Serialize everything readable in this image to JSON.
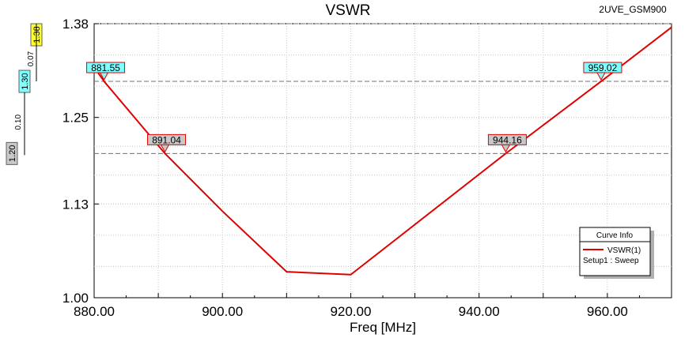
{
  "chart_data": {
    "type": "line",
    "title": "VSWR",
    "project": "2UVE_GSM900",
    "xlabel": "Freq [MHz]",
    "ylabel": "",
    "xlim": [
      880,
      970
    ],
    "ylim": [
      1.0,
      1.38
    ],
    "x_ticks": [
      "880.00",
      "900.00",
      "920.00",
      "940.00",
      "960.00"
    ],
    "x_tick_values": [
      880,
      900,
      920,
      940,
      960
    ],
    "y_ticks": [
      "1.00",
      "1.13",
      "1.25",
      "1.38"
    ],
    "y_tick_values": [
      1.0,
      1.13,
      1.25,
      1.38
    ],
    "series": [
      {
        "name": "VSWR(1)",
        "color": "#e00000",
        "x": [
          880,
          881.55,
          891.04,
          900,
          910,
          920,
          944.16,
          959.02,
          970
        ],
        "y": [
          1.32,
          1.3,
          1.2,
          1.12,
          1.036,
          1.032,
          1.2,
          1.3,
          1.375
        ]
      }
    ],
    "markers": [
      {
        "label": "881.55",
        "x": 881.55,
        "y": 1.3,
        "style": "cyan"
      },
      {
        "label": "891.04",
        "x": 891.04,
        "y": 1.2,
        "style": "gray"
      },
      {
        "label": "944.16",
        "x": 944.16,
        "y": 1.2,
        "style": "gray"
      },
      {
        "label": "959.02",
        "x": 959.02,
        "y": 1.3,
        "style": "cyan"
      }
    ],
    "ref_lines": [
      {
        "y": 1.38,
        "label": "1.38",
        "style": "yellow"
      },
      {
        "y": 1.3,
        "label": "1.30",
        "style": "cyan"
      },
      {
        "y": 1.2,
        "label": "1.20",
        "style": "gray"
      }
    ],
    "deltas": [
      {
        "from": 1.38,
        "to": 1.3,
        "label": "0.07"
      },
      {
        "from": 1.3,
        "to": 1.2,
        "label": "0.10"
      }
    ],
    "legend": {
      "title": "Curve Info",
      "entry_name": "VSWR(1)",
      "entry_sub": "Setup1 : Sweep",
      "placement": "bottom-right"
    },
    "grid": true
  }
}
